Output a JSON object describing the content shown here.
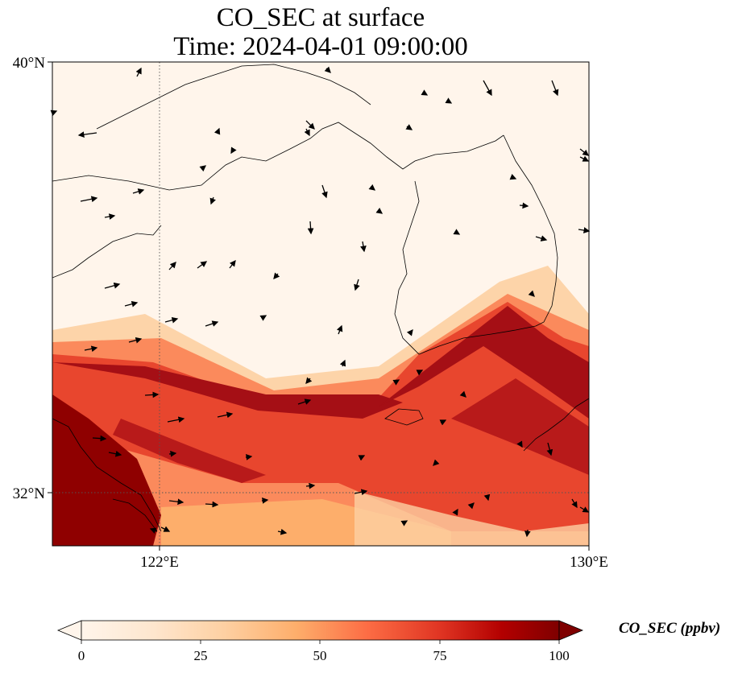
{
  "title": {
    "line1": "CO_SEC at surface",
    "line2": "Time: 2024-04-01 09:00:00"
  },
  "map": {
    "lon_range": [
      118,
      130
    ],
    "lat_range": [
      30.8,
      40
    ],
    "lat_ticks": [
      {
        "value": 40,
        "label": "40°N"
      },
      {
        "value": 32,
        "label": "32°N"
      }
    ],
    "lon_ticks": [
      {
        "value": 122,
        "label": "122°E"
      },
      {
        "value": 130,
        "label": "130°E"
      }
    ],
    "gridlines": {
      "lon": [
        122
      ],
      "lat": [
        32
      ],
      "style": "dotted"
    },
    "background_color": "#fff5eb",
    "coastline_color": "#000000",
    "wind_vectors": "shown"
  },
  "colorbar": {
    "label": "CO_SEC (ppbv)",
    "min": 0,
    "max": 100,
    "ticks": [
      "0",
      "25",
      "50",
      "75",
      "100"
    ],
    "colormap": "OrRd",
    "colors": [
      "#fff5eb",
      "#fee6ce",
      "#fdd0a2",
      "#fdae6b",
      "#fd8d3c",
      "#f16913",
      "#d94801",
      "#a50f15",
      "#7f0000"
    ],
    "extend": "both"
  }
}
